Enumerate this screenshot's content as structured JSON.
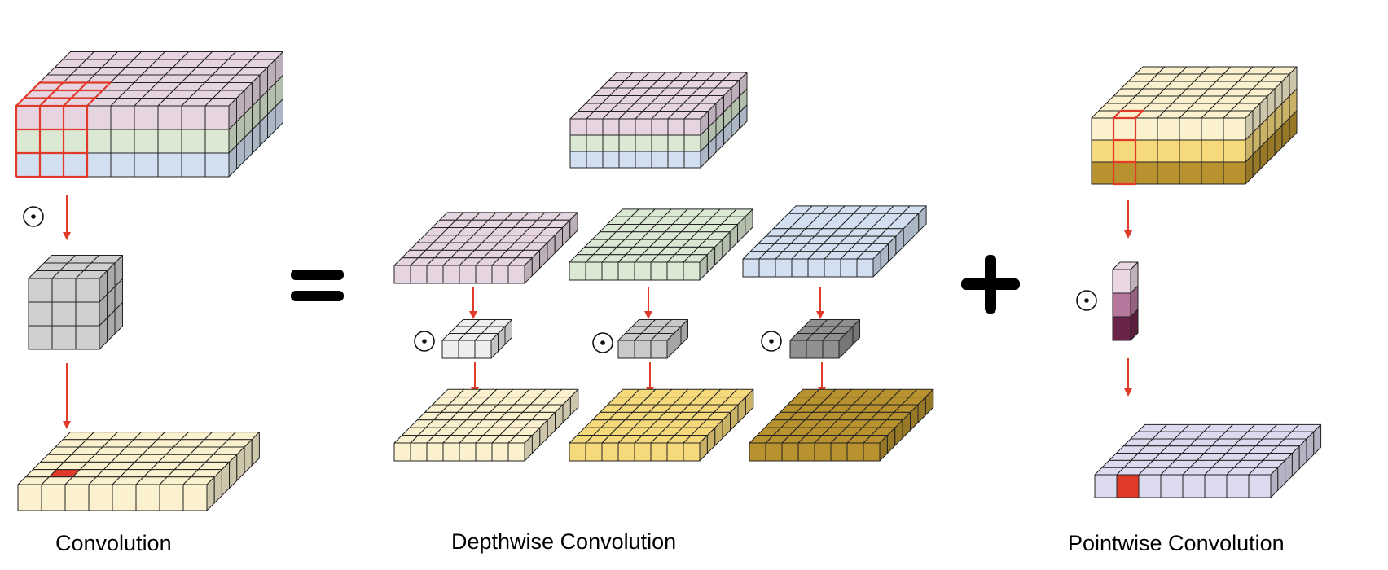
{
  "captions": {
    "convolution": "Convolution",
    "depthwise": "Depthwise Convolution",
    "pointwise": "Pointwise Convolution"
  },
  "operators": {
    "equals": "=",
    "plus": "+",
    "dot": "⊙"
  },
  "colors": {
    "channel_pink": "#e6d5e1",
    "channel_green": "#dbe8d3",
    "channel_blue": "#d2dff0",
    "output_cream": "#fbf1cf",
    "output_yellow": "#f5d97b",
    "output_gold": "#b8922e",
    "kernel_light": "#eeeeee",
    "kernel_mid": "#c9c9c9",
    "kernel_dark": "#909090",
    "kernel_gray": "#cfcfcf",
    "pw_light": "#ead7e3",
    "pw_mid": "#b5789c",
    "pw_dark": "#6b2449",
    "result_lavender": "#dcdaee",
    "highlight_red": "#e03a2a",
    "arrow_red": "#e03a2a",
    "edge": "#222222"
  }
}
